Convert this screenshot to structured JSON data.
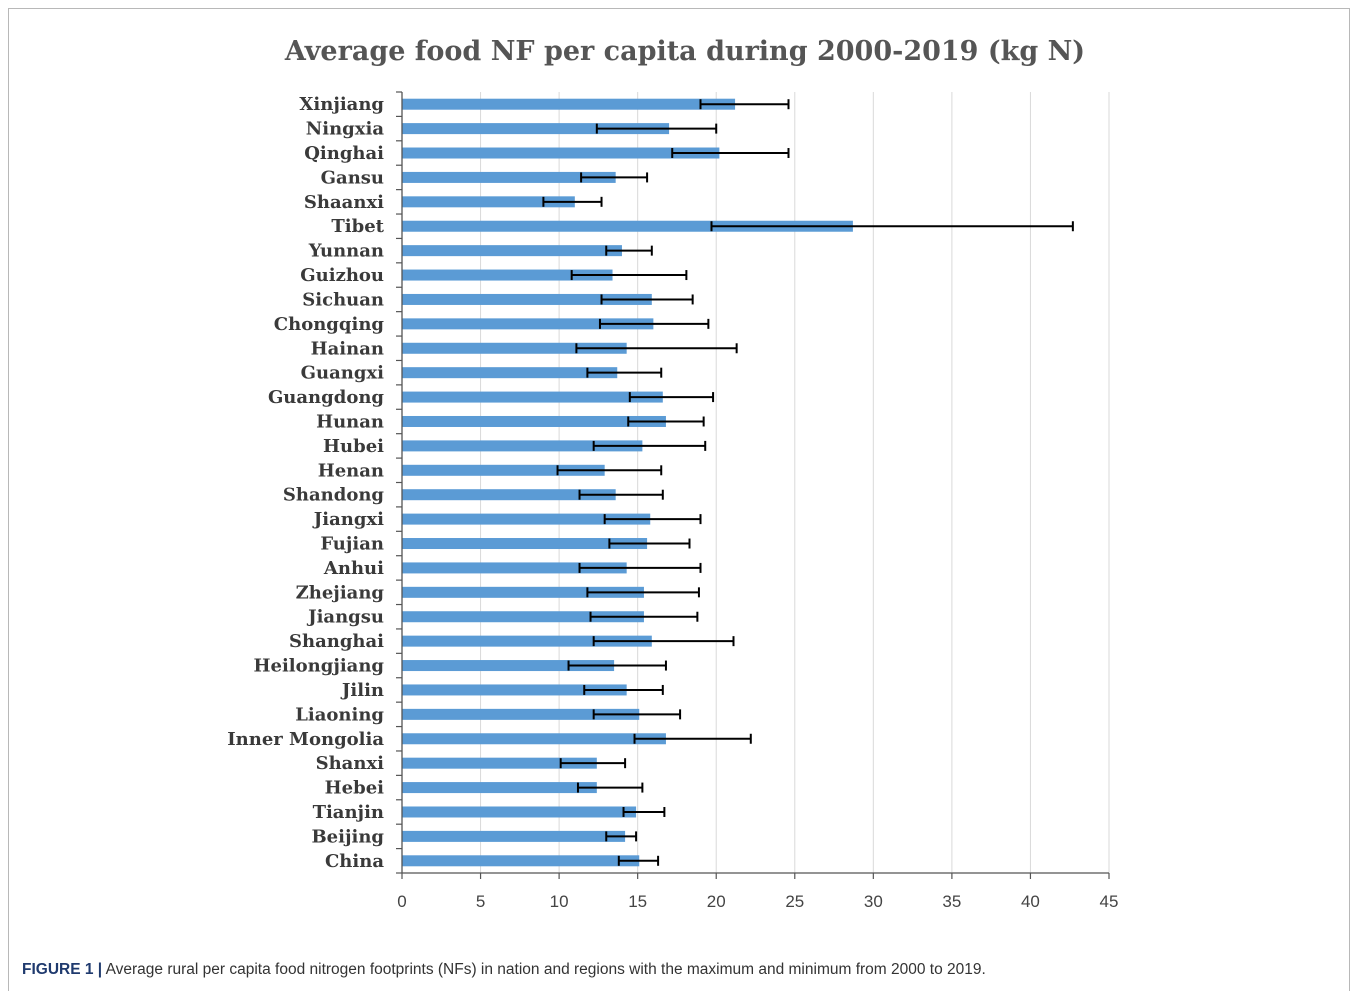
{
  "chart_data": {
    "type": "bar",
    "orientation": "horizontal",
    "title": "Average food NF per capita  during 2000-2019 (kg N)",
    "xlabel": "",
    "ylabel": "",
    "xlim": [
      0,
      45
    ],
    "x_ticks": [
      0,
      5,
      10,
      15,
      20,
      25,
      30,
      35,
      40,
      45
    ],
    "grid": "vertical",
    "legend": "none",
    "bar_color": "#5b9bd5",
    "error_bar_color": "#000000",
    "categories": [
      "Xinjiang",
      "Ningxia",
      "Qinghai",
      "Gansu",
      "Shaanxi",
      "Tibet",
      "Yunnan",
      "Guizhou",
      "Sichuan",
      "Chongqing",
      "Hainan",
      "Guangxi",
      "Guangdong",
      "Hunan",
      "Hubei",
      "Henan",
      "Shandong",
      "Jiangxi",
      "Fujian",
      "Anhui",
      "Zhejiang",
      "Jiangsu",
      "Shanghai",
      "Heilongjiang",
      "Jilin",
      "Liaoning",
      "Inner Mongolia",
      "Shanxi",
      "Hebei",
      "Tianjin",
      "Beijing",
      "China"
    ],
    "values": [
      21.2,
      17.0,
      20.2,
      13.6,
      11.0,
      28.7,
      14.0,
      13.4,
      15.9,
      16.0,
      14.3,
      13.7,
      16.6,
      16.8,
      15.3,
      12.9,
      13.6,
      15.8,
      15.6,
      14.3,
      15.4,
      15.4,
      15.9,
      13.5,
      14.3,
      15.1,
      16.8,
      12.4,
      12.4,
      14.9,
      14.2,
      15.1
    ],
    "min": [
      19.0,
      12.4,
      17.2,
      11.4,
      9.0,
      19.7,
      13.0,
      10.8,
      12.7,
      12.6,
      11.1,
      11.8,
      14.5,
      14.4,
      12.2,
      9.9,
      11.3,
      12.9,
      13.2,
      11.3,
      11.8,
      12.0,
      12.2,
      10.6,
      11.6,
      12.2,
      14.8,
      10.1,
      11.2,
      14.1,
      13.0,
      13.8
    ],
    "max": [
      24.6,
      20.0,
      24.6,
      15.6,
      12.7,
      42.7,
      15.9,
      18.1,
      18.5,
      19.5,
      21.3,
      16.5,
      19.8,
      19.2,
      19.3,
      16.5,
      16.6,
      19.0,
      18.3,
      19.0,
      18.9,
      18.8,
      21.1,
      16.8,
      16.6,
      17.7,
      22.2,
      14.2,
      15.3,
      16.7,
      14.9,
      16.3
    ]
  },
  "caption": {
    "label": "FIGURE 1 |",
    "text": " Average rural per capita food nitrogen footprints (NFs) in nation and regions with the maximum and minimum from 2000 to 2019."
  }
}
